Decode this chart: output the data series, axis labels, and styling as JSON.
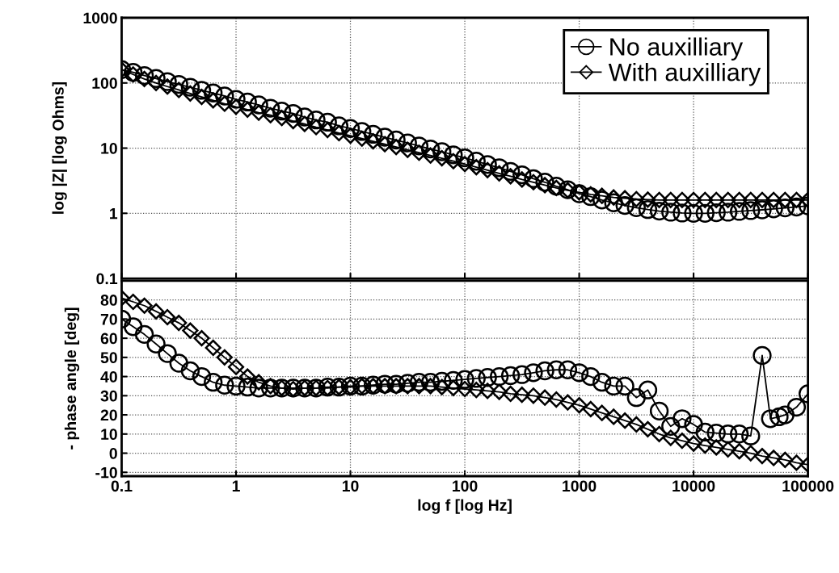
{
  "chart_data": [
    {
      "type": "line",
      "ylabel": "log |Z| [log Ohms]",
      "log": "xy",
      "line_style": "solid",
      "grid": true,
      "legend": "top right",
      "tick_labels": "y",
      "x": [
        0.1,
        0.126,
        0.158,
        0.2,
        0.251,
        0.316,
        0.398,
        0.501,
        0.631,
        0.794,
        1,
        1.26,
        1.58,
        2,
        2.51,
        3.16,
        3.98,
        5.01,
        6.31,
        7.94,
        10,
        12.6,
        15.8,
        20,
        25.1,
        31.6,
        39.8,
        50.1,
        63.1,
        79.4,
        100,
        126,
        158,
        200,
        251,
        316,
        398,
        501,
        631,
        794,
        1000,
        1260,
        1580,
        2000,
        2510,
        3160,
        3980,
        5010,
        6310,
        7940,
        10000,
        12600,
        15800,
        20000,
        25100,
        31600,
        39800,
        50100,
        63100,
        79400,
        100000
      ],
      "xlim": [
        0.1,
        100000
      ],
      "xticks": [
        0.1,
        1,
        10,
        100,
        1000,
        10000,
        100000
      ],
      "ylim": [
        0.1,
        1000
      ],
      "yticks": [
        0.1,
        1,
        10,
        100,
        1000
      ],
      "series": [
        {
          "name": "No auxilliary",
          "color": "#000000",
          "marker": "circle",
          "values": [
            160,
            145,
            130,
            117,
            105,
            95,
            86,
            77,
            70,
            63,
            56,
            51,
            46,
            41,
            37,
            34,
            30,
            27,
            25,
            22,
            20,
            18,
            16.3,
            14.7,
            13.3,
            12,
            10.8,
            9.7,
            8.8,
            7.9,
            7.1,
            6.3,
            5.6,
            5,
            4.4,
            3.9,
            3.4,
            3,
            2.6,
            2.3,
            2.0,
            1.8,
            1.6,
            1.45,
            1.32,
            1.22,
            1.14,
            1.08,
            1.04,
            1.01,
            1.0,
            1.0,
            1.02,
            1.04,
            1.07,
            1.1,
            1.13,
            1.17,
            1.21,
            1.25,
            1.3
          ]
        },
        {
          "name": "With auxilliary",
          "color": "#000000",
          "marker": "diamond",
          "values": [
            160,
            135,
            115,
            100,
            88,
            78,
            69,
            61,
            54,
            48,
            43,
            39,
            35,
            32,
            29,
            26,
            23.5,
            21,
            19,
            17,
            15.5,
            14,
            12.7,
            11.5,
            10.4,
            9.4,
            8.5,
            7.7,
            7,
            6.3,
            5.7,
            5.1,
            4.6,
            4.1,
            3.7,
            3.3,
            3,
            2.7,
            2.45,
            2.25,
            2.1,
            1.95,
            1.85,
            1.75,
            1.7,
            1.65,
            1.62,
            1.6,
            1.6,
            1.6,
            1.6,
            1.6,
            1.6,
            1.6,
            1.6,
            1.6,
            1.6,
            1.6,
            1.6,
            1.6,
            1.6
          ]
        }
      ]
    },
    {
      "type": "line",
      "ylabel": "- phase angle [deg]",
      "xlabel": "log f [log Hz]",
      "log": "x",
      "line_style": "solid",
      "grid": true,
      "x": [
        0.1,
        0.126,
        0.158,
        0.2,
        0.251,
        0.316,
        0.398,
        0.501,
        0.631,
        0.794,
        1,
        1.26,
        1.58,
        2,
        2.51,
        3.16,
        3.98,
        5.01,
        6.31,
        7.94,
        10,
        12.6,
        15.8,
        20,
        25.1,
        31.6,
        39.8,
        50.1,
        63.1,
        79.4,
        100,
        126,
        158,
        200,
        251,
        316,
        398,
        501,
        631,
        794,
        1000,
        1260,
        1580,
        2000,
        2510,
        3160,
        3980,
        5010,
        6310,
        7940,
        10000,
        12600,
        15800,
        20000,
        25100,
        31600,
        39800,
        50100,
        63100,
        79400,
        100000
      ],
      "xlim": [
        0.1,
        100000
      ],
      "xticks": [
        0.1,
        1,
        10,
        100,
        1000,
        10000,
        100000
      ],
      "ylim": [
        -12,
        90
      ],
      "yticks": [
        -10,
        0,
        10,
        20,
        30,
        40,
        50,
        60,
        70,
        80
      ],
      "series": [
        {
          "color": "#000000",
          "marker": "circle",
          "x": [
            0.1,
            0.126,
            0.158,
            0.2,
            0.251,
            0.316,
            0.398,
            0.501,
            0.631,
            0.794,
            1,
            1.26,
            1.58,
            2,
            2.51,
            3.16,
            3.98,
            5.01,
            6.31,
            7.94,
            10,
            12.6,
            15.8,
            20,
            25.1,
            31.6,
            39.8,
            50.1,
            63.1,
            79.4,
            100,
            126,
            158,
            200,
            251,
            316,
            398,
            501,
            631,
            794,
            1000,
            1260,
            1580,
            2000,
            2510,
            3160,
            3980,
            5010,
            6310,
            7940,
            10000,
            12600,
            15800,
            20000,
            25100,
            31600,
            39800,
            47000,
            56000,
            63100,
            79400,
            100000
          ],
          "values": [
            70,
            66,
            62,
            57,
            52,
            47,
            43,
            40,
            37,
            35.5,
            35,
            34.5,
            34,
            34,
            34,
            34,
            34,
            34,
            34.5,
            34.5,
            35,
            35,
            35.5,
            36,
            36,
            36.5,
            37,
            37,
            37.5,
            38,
            38.5,
            39,
            39.5,
            40,
            40.5,
            41,
            42,
            43,
            43.5,
            43.5,
            42,
            40,
            37,
            35,
            35,
            29,
            33,
            22,
            14,
            18,
            15,
            11,
            10.5,
            10,
            10,
            9,
            51,
            18,
            19,
            20,
            24,
            31
          ]
        },
        {
          "color": "#000000",
          "marker": "diamond",
          "values": [
            81,
            79,
            77,
            74,
            71,
            68,
            64,
            60,
            55,
            50,
            45,
            40,
            37,
            35,
            34,
            33.5,
            34,
            34,
            34,
            34.5,
            34.5,
            35,
            35,
            35,
            35,
            35,
            35,
            35,
            34.5,
            34,
            33.5,
            33,
            32.5,
            32,
            31,
            30.5,
            30,
            29,
            28,
            26.5,
            25,
            23,
            21,
            19,
            17,
            15,
            12.5,
            10,
            8,
            6.5,
            5,
            4,
            3,
            2,
            1,
            0,
            -1.5,
            -2.5,
            -3.5,
            -5,
            -6
          ]
        }
      ]
    }
  ]
}
